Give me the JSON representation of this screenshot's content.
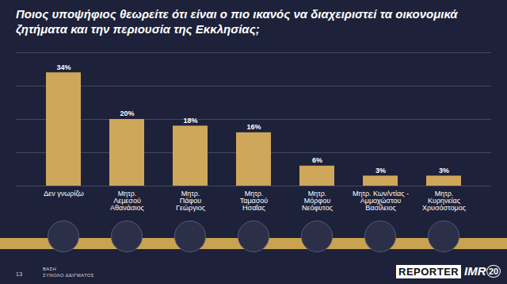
{
  "chart_data": {
    "type": "bar",
    "title": "Ποιος υποψήφιος θεωρείτε ότι είναι ο πιο ικανός να διαχειριστεί τα οικονομικά ζητήματα και την περιουσία της Εκκλησίας;",
    "categories": [
      "Δεν γνωρίζω",
      "Μητρ.\nΛεμεσού\nΑθανάσιος",
      "Μητρ.\nΠάφου\nΓεώργιος",
      "Μητρ.\nΤαμασού\nΗσαΐας",
      "Μητρ.\nΜόρφου\nΝεόφυτος",
      "Μητρ. Κων/ντίας -\nΑμμοχώστου\nΒασίλειος",
      "Μητρ.\nΚυρηνείας\nΧρυσόστομος"
    ],
    "values": [
      34,
      20,
      18,
      16,
      6,
      3,
      3
    ],
    "value_labels": [
      "34%",
      "20%",
      "18%",
      "16%",
      "6%",
      "3%",
      "3%"
    ],
    "color": "#cfa75a",
    "ylim": [
      0,
      40
    ],
    "yticks": [
      0,
      10,
      20,
      30,
      40
    ],
    "grid": true,
    "data_labels": true,
    "tick_labels": "x",
    "annotations": [
      "ΒΑΣΗ",
      "ΣΥΝΟΛΟ ΔΕΙΓΜΑΤΟΣ",
      "13",
      "REPORTER",
      "IMR",
      "20"
    ]
  }
}
